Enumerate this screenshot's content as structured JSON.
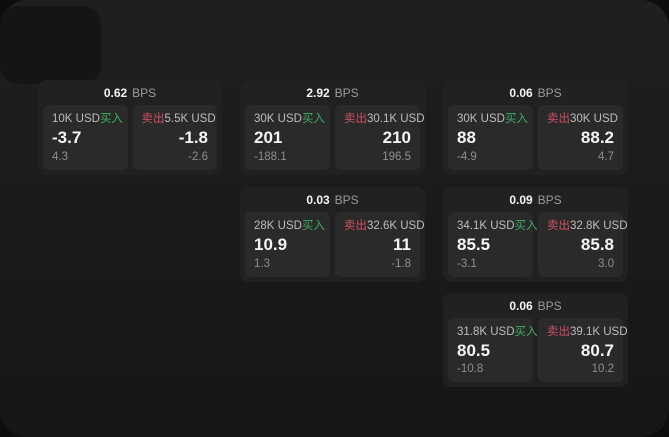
{
  "colors": {
    "page_bg": "#0d0d0d",
    "panel_bg_top": "#1f1f1f",
    "panel_bg_bottom": "#161616",
    "corner_shape_bg": "#151515",
    "card_bg": "#212121",
    "tile_bg": "#2a2a2a",
    "text_primary": "#f5f5f5",
    "text_secondary": "#bdbdbd",
    "text_muted": "#8e8e8e",
    "text_muted2": "#9a9a9a",
    "accent_green": "#3fae64",
    "accent_red": "#cf4f63"
  },
  "labels": {
    "bps": "BPS",
    "buy": "买入",
    "sell": "卖出"
  },
  "cards": [
    {
      "bps": "0.62",
      "buy": {
        "amount": "10K USD",
        "value": "-3.7",
        "delta": "4.3"
      },
      "sell": {
        "amount": "5.5K USD",
        "value": "-1.8",
        "delta": "-2.6"
      }
    },
    {
      "bps": "2.92",
      "buy": {
        "amount": "30K USD",
        "value": "201",
        "delta": "-188.1"
      },
      "sell": {
        "amount": "30.1K USD",
        "value": "210",
        "delta": "196.5"
      }
    },
    {
      "bps": "0.03",
      "buy": {
        "amount": "28K USD",
        "value": "10.9",
        "delta": "1.3"
      },
      "sell": {
        "amount": "32.6K USD",
        "value": "11",
        "delta": "-1.8"
      }
    },
    {
      "bps": "0.06",
      "buy": {
        "amount": "30K USD",
        "value": "88",
        "delta": "-4.9"
      },
      "sell": {
        "amount": "30K USD",
        "value": "88.2",
        "delta": "4.7"
      }
    },
    {
      "bps": "0.09",
      "buy": {
        "amount": "34.1K USD",
        "value": "85.5",
        "delta": "-3.1"
      },
      "sell": {
        "amount": "32.8K USD",
        "value": "85.8",
        "delta": "3.0"
      }
    },
    {
      "bps": "0.06",
      "buy": {
        "amount": "31.8K USD",
        "value": "80.5",
        "delta": "-10.8"
      },
      "sell": {
        "amount": "39.1K USD",
        "value": "80.7",
        "delta": "10.2"
      }
    }
  ]
}
